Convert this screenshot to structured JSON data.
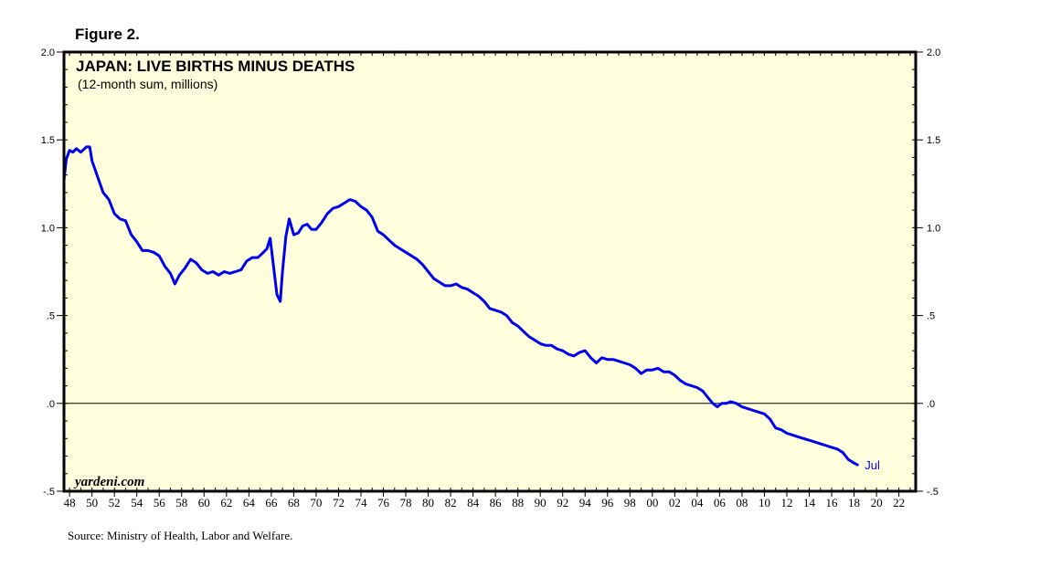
{
  "figure_label": "Figure 2.",
  "source": "Source: Ministry of Health, Labor and Welfare.",
  "watermark": "yardeni.com",
  "chart_data": {
    "type": "line",
    "title": "JAPAN: LIVE BIRTHS MINUS DEATHS",
    "subtitle": "(12-month sum, millions)",
    "xlabel": "",
    "ylabel": "",
    "xlim": [
      1947.5,
      2023.5
    ],
    "ylim": [
      -0.5,
      2.0
    ],
    "y_ticks": [
      {
        "value": 2.0,
        "label": "2.0"
      },
      {
        "value": 1.5,
        "label": "1.5"
      },
      {
        "value": 1.0,
        "label": "1.0"
      },
      {
        "value": 0.5,
        "label": ".5"
      },
      {
        "value": 0.0,
        "label": ".0"
      },
      {
        "value": -0.5,
        "label": "-.5"
      }
    ],
    "x_ticks": [
      {
        "value": 1948,
        "label": "48"
      },
      {
        "value": 1950,
        "label": "50"
      },
      {
        "value": 1952,
        "label": "52"
      },
      {
        "value": 1954,
        "label": "54"
      },
      {
        "value": 1956,
        "label": "56"
      },
      {
        "value": 1958,
        "label": "58"
      },
      {
        "value": 1960,
        "label": "60"
      },
      {
        "value": 1962,
        "label": "62"
      },
      {
        "value": 1964,
        "label": "64"
      },
      {
        "value": 1966,
        "label": "66"
      },
      {
        "value": 1968,
        "label": "68"
      },
      {
        "value": 1970,
        "label": "70"
      },
      {
        "value": 1972,
        "label": "72"
      },
      {
        "value": 1974,
        "label": "74"
      },
      {
        "value": 1976,
        "label": "76"
      },
      {
        "value": 1978,
        "label": "78"
      },
      {
        "value": 1980,
        "label": "80"
      },
      {
        "value": 1982,
        "label": "82"
      },
      {
        "value": 1984,
        "label": "84"
      },
      {
        "value": 1986,
        "label": "86"
      },
      {
        "value": 1988,
        "label": "88"
      },
      {
        "value": 1990,
        "label": "90"
      },
      {
        "value": 1992,
        "label": "92"
      },
      {
        "value": 1994,
        "label": "94"
      },
      {
        "value": 1996,
        "label": "96"
      },
      {
        "value": 1998,
        "label": "98"
      },
      {
        "value": 2000,
        "label": "00"
      },
      {
        "value": 2002,
        "label": "02"
      },
      {
        "value": 2004,
        "label": "04"
      },
      {
        "value": 2006,
        "label": "06"
      },
      {
        "value": 2008,
        "label": "08"
      },
      {
        "value": 2010,
        "label": "10"
      },
      {
        "value": 2012,
        "label": "12"
      },
      {
        "value": 2014,
        "label": "14"
      },
      {
        "value": 2016,
        "label": "16"
      },
      {
        "value": 2018,
        "label": "18"
      },
      {
        "value": 2020,
        "label": "20"
      },
      {
        "value": 2022,
        "label": "22"
      }
    ],
    "reference_line": 0.0,
    "end_label": "Jul",
    "series": [
      {
        "name": "Live births minus deaths",
        "color": "#0000ee",
        "x": [
          1947.5,
          1947.7,
          1948.0,
          1948.3,
          1948.6,
          1949.0,
          1949.5,
          1949.8,
          1950.0,
          1950.5,
          1951.0,
          1951.5,
          1952.0,
          1952.5,
          1953.0,
          1953.5,
          1954.0,
          1954.5,
          1955.0,
          1955.5,
          1956.0,
          1956.5,
          1957.0,
          1957.4,
          1957.8,
          1958.3,
          1958.8,
          1959.3,
          1959.8,
          1960.3,
          1960.8,
          1961.3,
          1961.8,
          1962.3,
          1962.8,
          1963.3,
          1963.8,
          1964.3,
          1964.8,
          1965.3,
          1965.6,
          1965.9,
          1966.2,
          1966.5,
          1966.8,
          1967.0,
          1967.3,
          1967.6,
          1968.0,
          1968.4,
          1968.8,
          1969.2,
          1969.6,
          1970.0,
          1970.5,
          1971.0,
          1971.5,
          1972.0,
          1972.5,
          1973.0,
          1973.5,
          1974.0,
          1974.5,
          1975.0,
          1975.5,
          1976.0,
          1976.5,
          1977.0,
          1977.5,
          1978.0,
          1978.5,
          1979.0,
          1979.5,
          1980.0,
          1980.5,
          1981.0,
          1981.5,
          1982.0,
          1982.5,
          1983.0,
          1983.5,
          1984.0,
          1984.5,
          1985.0,
          1985.5,
          1986.0,
          1986.5,
          1987.0,
          1987.5,
          1988.0,
          1988.5,
          1989.0,
          1989.5,
          1990.0,
          1990.5,
          1991.0,
          1991.5,
          1992.0,
          1992.5,
          1993.0,
          1993.5,
          1994.0,
          1994.5,
          1995.0,
          1995.5,
          1996.0,
          1996.5,
          1997.0,
          1997.5,
          1998.0,
          1998.5,
          1999.0,
          1999.5,
          2000.0,
          2000.5,
          2001.0,
          2001.5,
          2002.0,
          2002.5,
          2003.0,
          2003.5,
          2004.0,
          2004.5,
          2005.0,
          2005.4,
          2005.8,
          2006.2,
          2006.6,
          2007.0,
          2007.5,
          2008.0,
          2008.5,
          2009.0,
          2009.5,
          2010.0,
          2010.5,
          2011.0,
          2011.5,
          2012.0,
          2012.5,
          2013.0,
          2013.5,
          2014.0,
          2014.5,
          2015.0,
          2015.5,
          2016.0,
          2016.5,
          2017.0,
          2017.5,
          2018.0,
          2018.3
        ],
        "y": [
          1.27,
          1.39,
          1.44,
          1.43,
          1.45,
          1.43,
          1.46,
          1.46,
          1.38,
          1.29,
          1.2,
          1.16,
          1.08,
          1.05,
          1.04,
          0.96,
          0.92,
          0.87,
          0.87,
          0.86,
          0.84,
          0.78,
          0.74,
          0.68,
          0.73,
          0.77,
          0.82,
          0.8,
          0.76,
          0.74,
          0.75,
          0.73,
          0.75,
          0.74,
          0.75,
          0.76,
          0.81,
          0.83,
          0.83,
          0.86,
          0.88,
          0.94,
          0.78,
          0.62,
          0.58,
          0.75,
          0.95,
          1.05,
          0.96,
          0.97,
          1.01,
          1.02,
          0.99,
          0.99,
          1.03,
          1.08,
          1.11,
          1.12,
          1.14,
          1.16,
          1.15,
          1.12,
          1.1,
          1.06,
          0.98,
          0.96,
          0.93,
          0.9,
          0.88,
          0.86,
          0.84,
          0.82,
          0.79,
          0.75,
          0.71,
          0.69,
          0.67,
          0.67,
          0.68,
          0.66,
          0.65,
          0.63,
          0.61,
          0.58,
          0.54,
          0.53,
          0.52,
          0.5,
          0.46,
          0.44,
          0.41,
          0.38,
          0.36,
          0.34,
          0.33,
          0.33,
          0.31,
          0.3,
          0.28,
          0.27,
          0.29,
          0.3,
          0.26,
          0.23,
          0.26,
          0.25,
          0.25,
          0.24,
          0.23,
          0.22,
          0.2,
          0.17,
          0.19,
          0.19,
          0.2,
          0.18,
          0.18,
          0.16,
          0.13,
          0.11,
          0.1,
          0.09,
          0.07,
          0.03,
          0.0,
          -0.02,
          0.0,
          0.0,
          0.01,
          0.0,
          -0.02,
          -0.03,
          -0.04,
          -0.05,
          -0.06,
          -0.09,
          -0.14,
          -0.15,
          -0.17,
          -0.18,
          -0.19,
          -0.2,
          -0.21,
          -0.22,
          -0.23,
          -0.24,
          -0.25,
          -0.26,
          -0.28,
          -0.32,
          -0.34,
          -0.35
        ]
      }
    ]
  }
}
